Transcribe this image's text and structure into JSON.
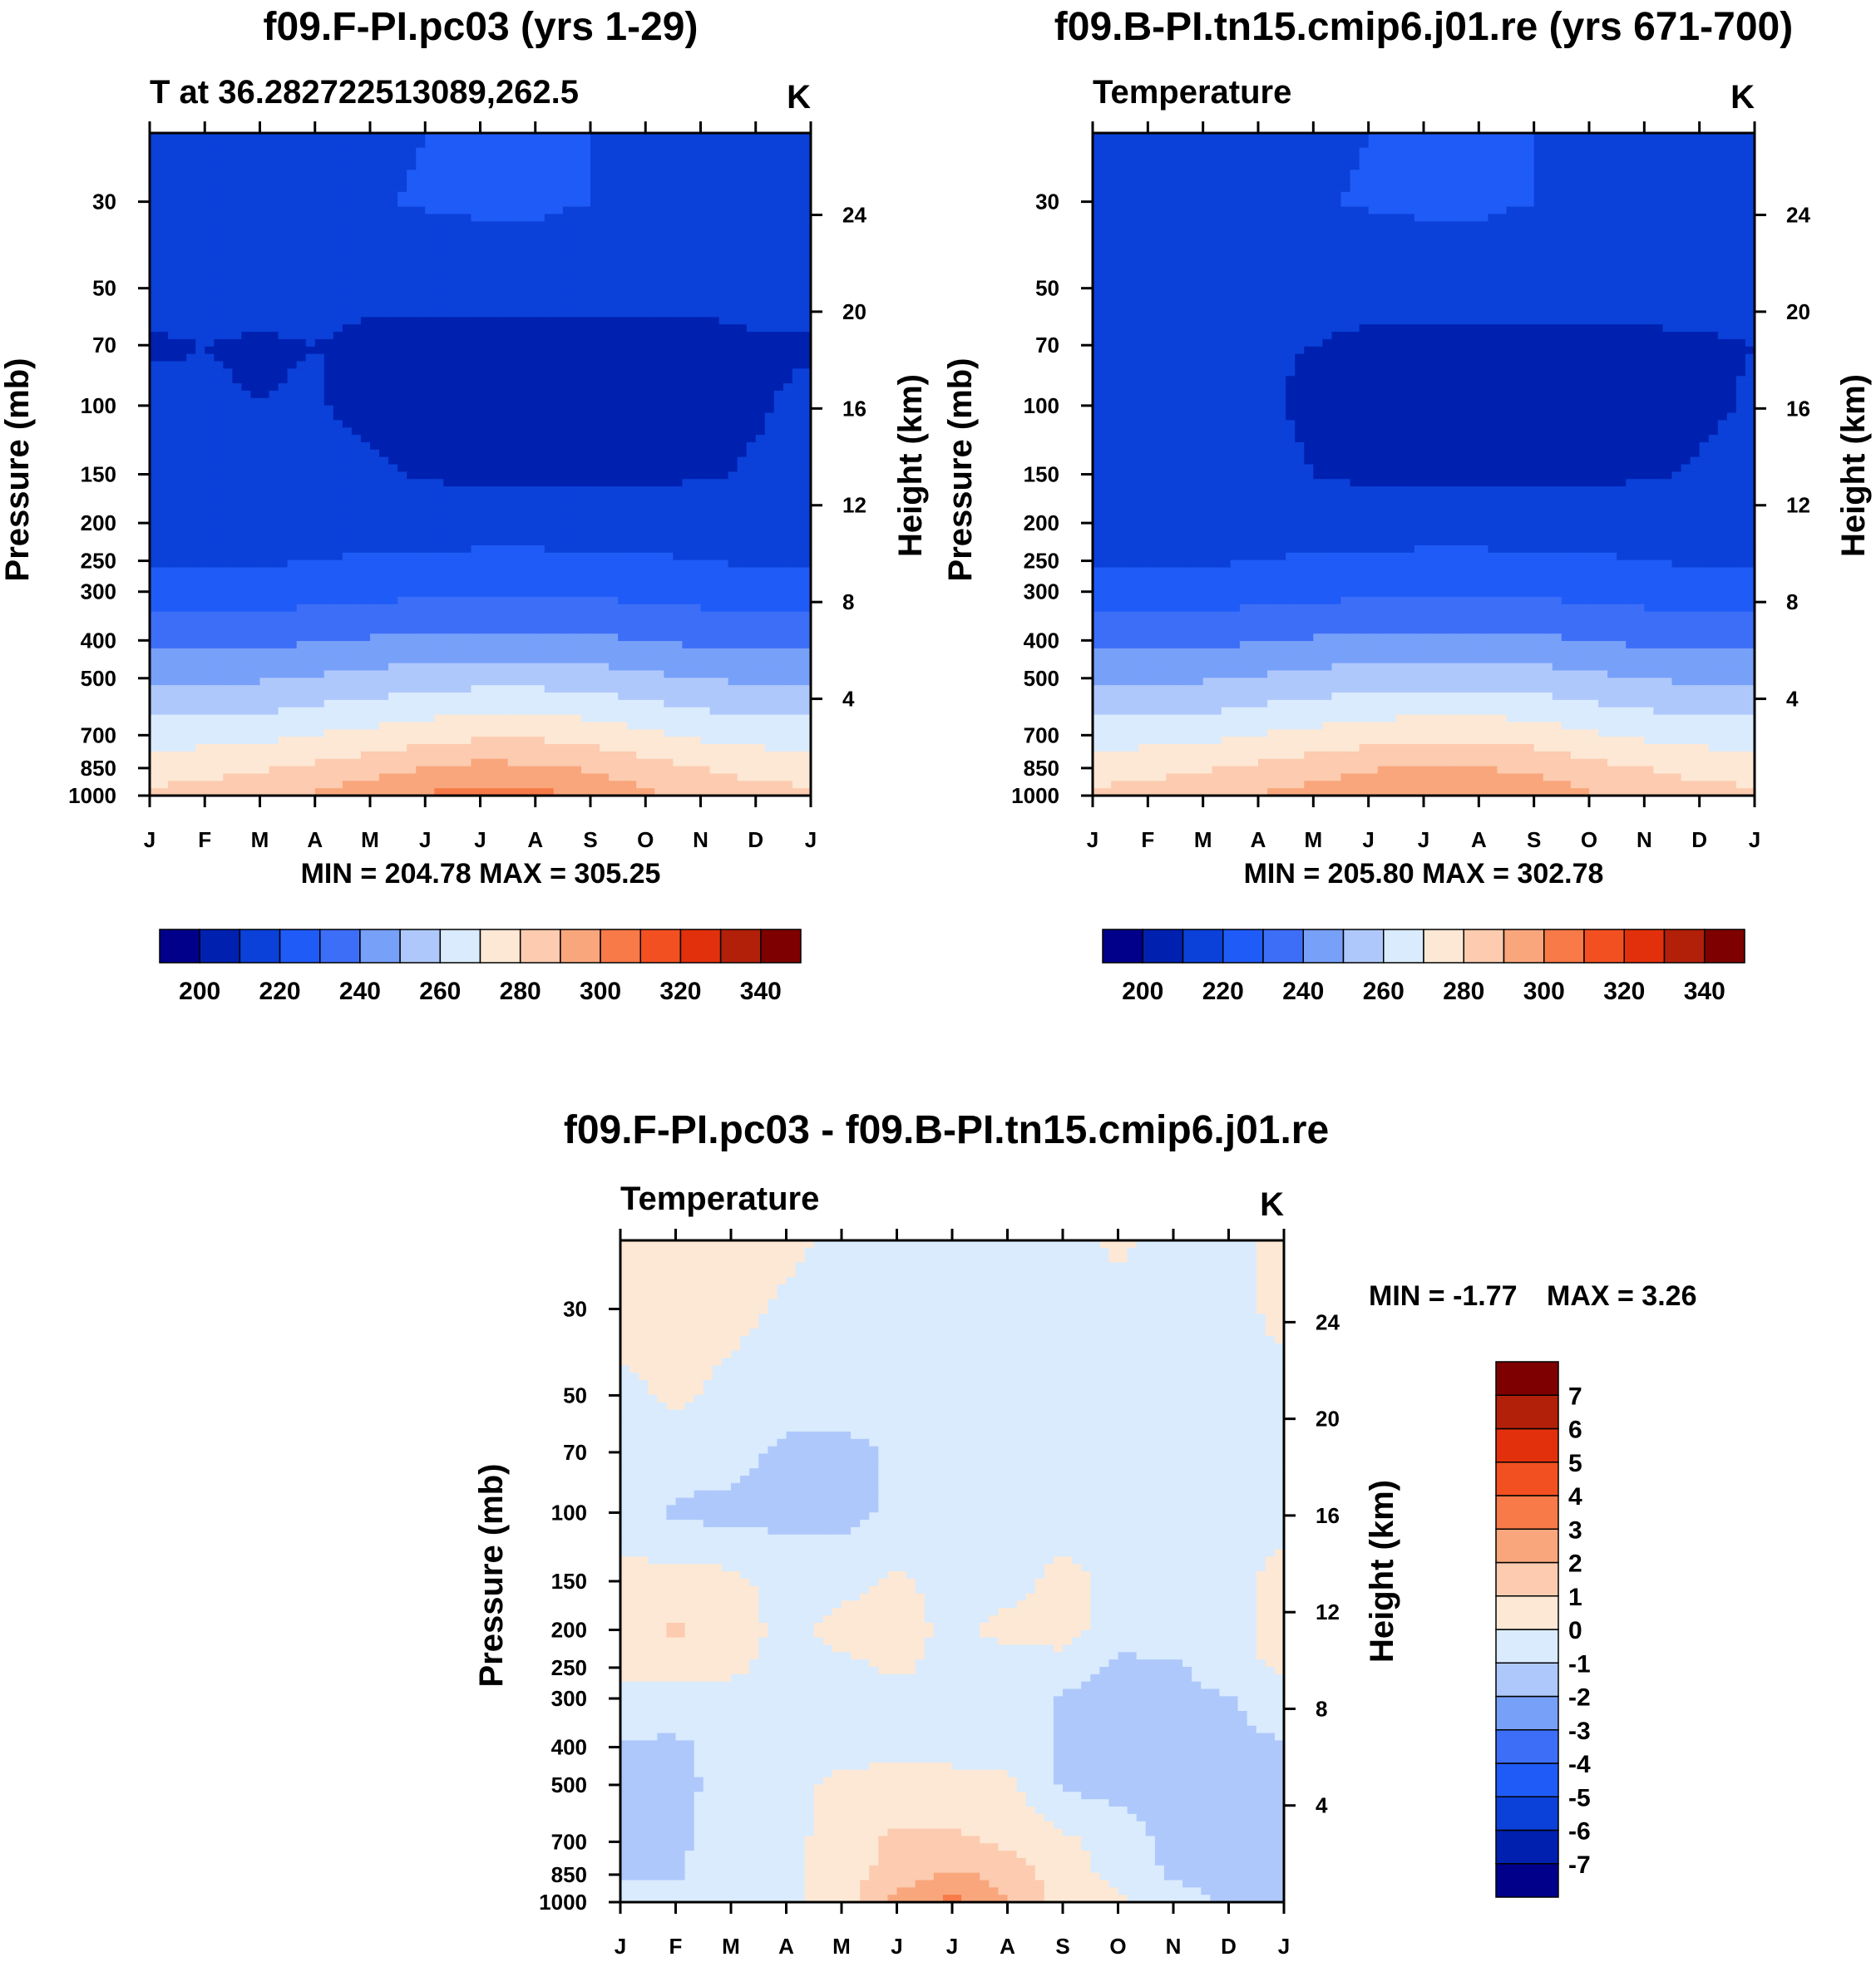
{
  "colors": {
    "temperature_fill": [
      "#00008b",
      "#0021b0",
      "#0b41d9",
      "#1f5bf7",
      "#3d6ef7",
      "#77a0f9",
      "#afc8fb",
      "#d9ebfd",
      "#fde8d5",
      "#fccbb0",
      "#f9a67c",
      "#f77a48",
      "#f35022",
      "#e3300c",
      "#b3200a",
      "#7f0000"
    ],
    "difference_fill": [
      "#00008b",
      "#0021b0",
      "#0b41d9",
      "#1f5bf7",
      "#3d6ef7",
      "#77a0f9",
      "#afc8fb",
      "#d9ebfd",
      "#fde8d5",
      "#fccbb0",
      "#f9a67c",
      "#f77a48",
      "#f35022",
      "#e3300c",
      "#b3200a",
      "#7f0000"
    ]
  },
  "chart_data": [
    {
      "type": "heatmap",
      "id": "panel1",
      "title": "f09.F-PI.pc03 (yrs 1-29)",
      "subtitle_left": "T at 36.282722513089,262.5",
      "subtitle_right": "K",
      "xlabel": "",
      "ylabel": "Pressure (mb)",
      "y2label": "Height (km)",
      "x_ticks": [
        "J",
        "F",
        "M",
        "A",
        "M",
        "J",
        "J",
        "A",
        "S",
        "O",
        "N",
        "D",
        "J"
      ],
      "y_ticks": [
        "30",
        "50",
        "70",
        "100",
        "150",
        "200",
        "250",
        "300",
        "400",
        "500",
        "700",
        "850",
        "1000"
      ],
      "y_tick_values": [
        30,
        50,
        70,
        100,
        150,
        200,
        250,
        300,
        400,
        500,
        700,
        850,
        1000
      ],
      "y2_ticks": [
        "24",
        "20",
        "16",
        "12",
        "8",
        "4"
      ],
      "y2_tick_values": [
        24,
        20,
        16,
        12,
        8,
        4
      ],
      "ylim": [
        1000,
        20
      ],
      "stats": "MIN = 204.78 MAX = 305.25",
      "colorbar_labels": [
        "200",
        "220",
        "240",
        "260",
        "280",
        "300",
        "320",
        "340"
      ],
      "levels": [
        190,
        200,
        210,
        220,
        230,
        240,
        250,
        260,
        270,
        280,
        290,
        300,
        310,
        320,
        330,
        340,
        350
      ],
      "months": [
        0,
        1,
        2,
        3,
        4,
        5,
        6,
        7,
        8,
        9,
        10,
        11,
        12
      ],
      "pressure_levels": [
        20,
        30,
        50,
        70,
        100,
        150,
        200,
        250,
        300,
        400,
        500,
        700,
        850,
        1000
      ],
      "values": [
        [
          216,
          216,
          216,
          217,
          218,
          220,
          222,
          222,
          220,
          217,
          216,
          216,
          216
        ],
        [
          216,
          216,
          217,
          218,
          219,
          221,
          222,
          222,
          220,
          218,
          216,
          216,
          216
        ],
        [
          213,
          213,
          213,
          213,
          212,
          212,
          212,
          212,
          212,
          212,
          212,
          213,
          213
        ],
        [
          209,
          210,
          209,
          210,
          208,
          208,
          208,
          208,
          208,
          208,
          208,
          209,
          209
        ],
        [
          212,
          211,
          210,
          211,
          207,
          206,
          206,
          206,
          206,
          206,
          207,
          209,
          212
        ],
        [
          214,
          214,
          214,
          214,
          212,
          209,
          208,
          208,
          208,
          208,
          209,
          211,
          214
        ],
        [
          216,
          216,
          216,
          216,
          217,
          216,
          216,
          216,
          216,
          216,
          216,
          216,
          216
        ],
        [
          219,
          219,
          219,
          220,
          221,
          221,
          222,
          222,
          221,
          221,
          220,
          219,
          219
        ],
        [
          224,
          224,
          225,
          226,
          227,
          228,
          229,
          228,
          228,
          227,
          226,
          225,
          224
        ],
        [
          237,
          237,
          238,
          239,
          241,
          242,
          243,
          243,
          242,
          240,
          238,
          237,
          237
        ],
        [
          248,
          248,
          249,
          251,
          253,
          255,
          256,
          256,
          255,
          252,
          250,
          248,
          248
        ],
        [
          265,
          266,
          267,
          270,
          273,
          276,
          278,
          278,
          276,
          272,
          268,
          266,
          265
        ],
        [
          276,
          277,
          279,
          282,
          286,
          290,
          293,
          292,
          289,
          284,
          280,
          277,
          276
        ],
        [
          282,
          284,
          287,
          291,
          296,
          301,
          304,
          303,
          299,
          292,
          286,
          283,
          282
        ]
      ]
    },
    {
      "type": "heatmap",
      "id": "panel2",
      "title": "f09.B-PI.tn15.cmip6.j01.re (yrs 671-700)",
      "subtitle_left": "Temperature",
      "subtitle_right": "K",
      "xlabel": "",
      "ylabel": "Pressure (mb)",
      "y2label": "Height (km)",
      "x_ticks": [
        "J",
        "F",
        "M",
        "A",
        "M",
        "J",
        "J",
        "A",
        "S",
        "O",
        "N",
        "D",
        "J"
      ],
      "y_ticks": [
        "30",
        "50",
        "70",
        "100",
        "150",
        "200",
        "250",
        "300",
        "400",
        "500",
        "700",
        "850",
        "1000"
      ],
      "y_tick_values": [
        30,
        50,
        70,
        100,
        150,
        200,
        250,
        300,
        400,
        500,
        700,
        850,
        1000
      ],
      "y2_ticks": [
        "24",
        "20",
        "16",
        "12",
        "8",
        "4"
      ],
      "y2_tick_values": [
        24,
        20,
        16,
        12,
        8,
        4
      ],
      "ylim": [
        1000,
        20
      ],
      "stats": "MIN = 205.80 MAX = 302.78",
      "colorbar_labels": [
        "200",
        "220",
        "240",
        "260",
        "280",
        "300",
        "320",
        "340"
      ],
      "levels": [
        190,
        200,
        210,
        220,
        230,
        240,
        250,
        260,
        270,
        280,
        290,
        300,
        310,
        320,
        330,
        340,
        350
      ],
      "months": [
        0,
        1,
        2,
        3,
        4,
        5,
        6,
        7,
        8,
        9,
        10,
        11,
        12
      ],
      "pressure_levels": [
        20,
        30,
        50,
        70,
        100,
        150,
        200,
        250,
        300,
        400,
        500,
        700,
        850,
        1000
      ],
      "values": [
        [
          216,
          216,
          216,
          217,
          218,
          220,
          222,
          222,
          220,
          217,
          216,
          216,
          216
        ],
        [
          216,
          216,
          217,
          218,
          219,
          221,
          222,
          222,
          220,
          218,
          216,
          216,
          216
        ],
        [
          213,
          213,
          213,
          213,
          212,
          212,
          212,
          212,
          212,
          212,
          212,
          213,
          213
        ],
        [
          211,
          211,
          211,
          211,
          210,
          209,
          209,
          209,
          209,
          209,
          209,
          209,
          210
        ],
        [
          210,
          212,
          212,
          212,
          208,
          207,
          207,
          207,
          207,
          207,
          207,
          208,
          211
        ],
        [
          212,
          213,
          213,
          213,
          210,
          208,
          208,
          208,
          208,
          208,
          209,
          211,
          214
        ],
        [
          216,
          216,
          216,
          216,
          216,
          216,
          216,
          216,
          216,
          216,
          216,
          216,
          216
        ],
        [
          219,
          219,
          219,
          220,
          221,
          221,
          222,
          222,
          221,
          221,
          220,
          219,
          219
        ],
        [
          224,
          224,
          225,
          226,
          227,
          228,
          229,
          228,
          228,
          227,
          226,
          225,
          224
        ],
        [
          237,
          237,
          238,
          239,
          241,
          242,
          243,
          243,
          242,
          240,
          238,
          237,
          237
        ],
        [
          248,
          248,
          249,
          251,
          253,
          255,
          256,
          256,
          255,
          252,
          250,
          248,
          248
        ],
        [
          265,
          266,
          267,
          270,
          273,
          275,
          277,
          277,
          275,
          271,
          268,
          266,
          265
        ],
        [
          276,
          277,
          279,
          282,
          285,
          289,
          291,
          290,
          288,
          283,
          280,
          277,
          276
        ],
        [
          282,
          284,
          286,
          290,
          295,
          299,
          301,
          301,
          297,
          291,
          286,
          283,
          282
        ]
      ]
    },
    {
      "type": "heatmap",
      "id": "panel3",
      "title": "f09.F-PI.pc03 - f09.B-PI.tn15.cmip6.j01.re",
      "subtitle_left": "Temperature",
      "subtitle_right": "K",
      "xlabel": "",
      "ylabel": "Pressure (mb)",
      "y2label": "Height (km)",
      "x_ticks": [
        "J",
        "F",
        "M",
        "A",
        "M",
        "J",
        "J",
        "A",
        "S",
        "O",
        "N",
        "D",
        "J"
      ],
      "y_ticks": [
        "30",
        "50",
        "70",
        "100",
        "150",
        "200",
        "250",
        "300",
        "400",
        "500",
        "700",
        "850",
        "1000"
      ],
      "y_tick_values": [
        30,
        50,
        70,
        100,
        150,
        200,
        250,
        300,
        400,
        500,
        700,
        850,
        1000
      ],
      "y2_ticks": [
        "24",
        "20",
        "16",
        "12",
        "8",
        "4"
      ],
      "y2_tick_values": [
        24,
        20,
        16,
        12,
        8,
        4
      ],
      "ylim": [
        1000,
        20
      ],
      "stats_min": "MIN =  -1.77",
      "stats_max": "MAX =    3.26",
      "colorbar_labels": [
        "7",
        "6",
        "5",
        "4",
        "3",
        "2",
        "1",
        "0",
        "-1",
        "-2",
        "-3",
        "-4",
        "-5",
        "-6",
        "-7"
      ],
      "levels": [
        -8,
        -7,
        -6,
        -5,
        -4,
        -3,
        -2,
        -1,
        0,
        1,
        2,
        3,
        4,
        5,
        6,
        7,
        8
      ],
      "months": [
        0,
        1,
        2,
        3,
        4,
        5,
        6,
        7,
        8,
        9,
        10,
        11,
        12
      ],
      "pressure_levels": [
        20,
        30,
        50,
        70,
        100,
        150,
        200,
        250,
        300,
        400,
        500,
        700,
        850,
        1000
      ],
      "values": [
        [
          0.5,
          0.6,
          0.4,
          0.3,
          -0.3,
          -0.4,
          -0.4,
          -0.4,
          -0.4,
          0.2,
          -0.4,
          -0.4,
          0.4
        ],
        [
          0.4,
          0.5,
          0.3,
          -0.2,
          -0.4,
          -0.4,
          -0.4,
          -0.4,
          -0.4,
          -0.4,
          -0.4,
          -0.4,
          0.3
        ],
        [
          -0.3,
          0.2,
          -0.3,
          -0.4,
          -0.4,
          -0.4,
          -0.4,
          -0.4,
          -0.4,
          -0.4,
          -0.4,
          -0.4,
          -0.3
        ],
        [
          -0.4,
          -0.4,
          -0.6,
          -1.3,
          -1.4,
          -0.8,
          -0.4,
          -0.4,
          -0.4,
          -0.4,
          -0.4,
          -0.4,
          -0.4
        ],
        [
          -0.4,
          -1.2,
          -1.3,
          -1.3,
          -1.3,
          -0.8,
          -0.6,
          -0.4,
          -0.4,
          -0.4,
          -0.4,
          -0.4,
          -0.4
        ],
        [
          0.3,
          0.4,
          0.3,
          -0.5,
          -0.4,
          0.2,
          -0.4,
          -0.4,
          0.3,
          -0.3,
          -0.4,
          -0.4,
          0.4
        ],
        [
          0.4,
          1.2,
          0.5,
          -0.3,
          0.4,
          0.5,
          -0.3,
          0.3,
          0.4,
          -0.4,
          -0.4,
          -0.4,
          0.5
        ],
        [
          0.2,
          0.3,
          0.2,
          -0.4,
          -0.3,
          0.2,
          -0.4,
          -0.4,
          -0.4,
          -1.3,
          -1.2,
          -0.4,
          0.2
        ],
        [
          -0.4,
          -0.4,
          -0.4,
          -0.4,
          -0.4,
          -0.4,
          -0.4,
          -0.4,
          -1.2,
          -1.4,
          -1.3,
          -1.1,
          -0.4
        ],
        [
          -1.1,
          -1.2,
          -0.6,
          -0.4,
          -0.4,
          -0.4,
          -0.4,
          -0.4,
          -1.2,
          -1.4,
          -1.4,
          -1.2,
          -1.1
        ],
        [
          -1.1,
          -1.3,
          -0.6,
          -0.4,
          0.3,
          0.5,
          0.4,
          0.3,
          -1.2,
          -1.3,
          -1.3,
          -1.2,
          -1.1
        ],
        [
          -1.2,
          -1.2,
          -0.5,
          -0.4,
          0.6,
          1.2,
          1.2,
          0.8,
          0.3,
          -0.5,
          -1.3,
          -1.3,
          -1.2
        ],
        [
          -1.1,
          -1.1,
          -0.5,
          -0.3,
          0.5,
          1.4,
          2.2,
          1.6,
          0.5,
          -0.3,
          -1.2,
          -1.4,
          -1.1
        ],
        [
          -0.5,
          -0.4,
          -0.4,
          -0.4,
          0.6,
          2.3,
          3.26,
          2.0,
          0.6,
          0.2,
          -0.5,
          -1.2,
          -1.5
        ]
      ]
    }
  ]
}
